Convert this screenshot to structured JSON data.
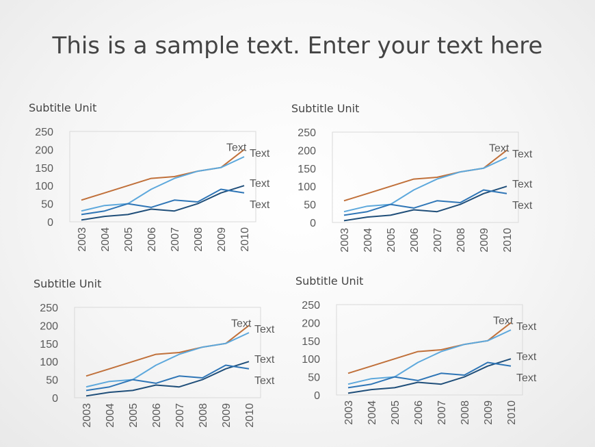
{
  "title": "This is a sample text. Enter your text here",
  "chart_data": [
    {
      "type": "line",
      "subtitle": "Subtitle Unit",
      "categories": [
        "2003",
        "2004",
        "2005",
        "2006",
        "2007",
        "2008",
        "2009",
        "2010"
      ],
      "ylim": [
        0,
        250
      ],
      "yticks": [
        0,
        50,
        100,
        150,
        200,
        250
      ],
      "grid": false,
      "series": [
        {
          "label": "Text",
          "color": "#C0703A",
          "values": [
            60,
            80,
            100,
            120,
            125,
            140,
            150,
            200
          ]
        },
        {
          "label": "Text",
          "color": "#5DA8DC",
          "values": [
            30,
            45,
            50,
            90,
            120,
            140,
            150,
            180
          ]
        },
        {
          "label": "Text",
          "color": "#1F4E79",
          "values": [
            5,
            15,
            20,
            35,
            30,
            50,
            80,
            100
          ]
        },
        {
          "label": "Text",
          "color": "#2E75B6",
          "values": [
            20,
            30,
            50,
            40,
            60,
            55,
            90,
            80
          ]
        }
      ]
    },
    {
      "type": "line",
      "subtitle": "Subtitle Unit",
      "categories": [
        "2003",
        "2004",
        "2005",
        "2006",
        "2007",
        "2008",
        "2009",
        "2010"
      ],
      "ylim": [
        0,
        250
      ],
      "yticks": [
        0,
        50,
        100,
        150,
        200,
        250
      ],
      "grid": false,
      "series": [
        {
          "label": "Text",
          "color": "#C0703A",
          "values": [
            60,
            80,
            100,
            120,
            125,
            140,
            150,
            200
          ]
        },
        {
          "label": "Text",
          "color": "#5DA8DC",
          "values": [
            30,
            45,
            50,
            90,
            120,
            140,
            150,
            180
          ]
        },
        {
          "label": "Text",
          "color": "#1F4E79",
          "values": [
            5,
            15,
            20,
            35,
            30,
            50,
            80,
            100
          ]
        },
        {
          "label": "Text",
          "color": "#2E75B6",
          "values": [
            20,
            30,
            50,
            40,
            60,
            55,
            90,
            80
          ]
        }
      ]
    },
    {
      "type": "line",
      "subtitle": "Subtitle Unit",
      "categories": [
        "2003",
        "2004",
        "2005",
        "2006",
        "2007",
        "2008",
        "2009",
        "2010"
      ],
      "ylim": [
        0,
        250
      ],
      "yticks": [
        0,
        50,
        100,
        150,
        200,
        250
      ],
      "grid": false,
      "series": [
        {
          "label": "Text",
          "color": "#C0703A",
          "values": [
            60,
            80,
            100,
            120,
            125,
            140,
            150,
            200
          ]
        },
        {
          "label": "Text",
          "color": "#5DA8DC",
          "values": [
            30,
            45,
            50,
            90,
            120,
            140,
            150,
            180
          ]
        },
        {
          "label": "Text",
          "color": "#1F4E79",
          "values": [
            5,
            15,
            20,
            35,
            30,
            50,
            80,
            100
          ]
        },
        {
          "label": "Text",
          "color": "#2E75B6",
          "values": [
            20,
            30,
            50,
            40,
            60,
            55,
            90,
            80
          ]
        }
      ]
    },
    {
      "type": "line",
      "subtitle": "Subtitle Unit",
      "categories": [
        "2003",
        "2004",
        "2005",
        "2006",
        "2007",
        "2008",
        "2009",
        "2010"
      ],
      "ylim": [
        0,
        250
      ],
      "yticks": [
        0,
        50,
        100,
        150,
        200,
        250
      ],
      "grid": false,
      "series": [
        {
          "label": "Text",
          "color": "#C0703A",
          "values": [
            60,
            80,
            100,
            120,
            125,
            140,
            150,
            200
          ]
        },
        {
          "label": "Text",
          "color": "#5DA8DC",
          "values": [
            30,
            45,
            50,
            90,
            120,
            140,
            150,
            180
          ]
        },
        {
          "label": "Text",
          "color": "#1F4E79",
          "values": [
            5,
            15,
            20,
            35,
            30,
            50,
            80,
            100
          ]
        },
        {
          "label": "Text",
          "color": "#2E75B6",
          "values": [
            20,
            30,
            50,
            40,
            60,
            55,
            90,
            80
          ]
        }
      ]
    }
  ]
}
